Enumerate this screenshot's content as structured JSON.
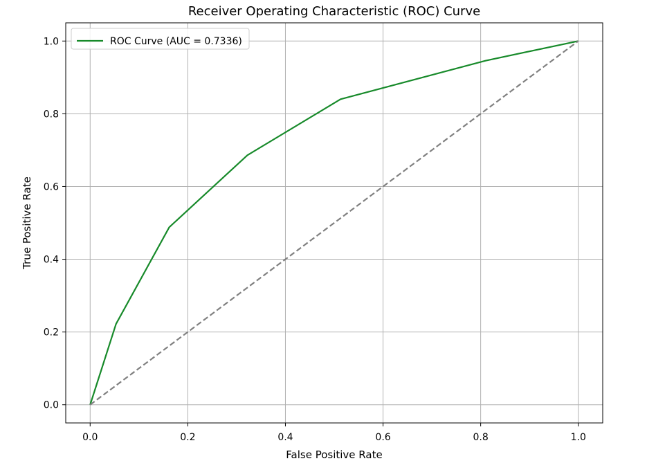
{
  "chart_data": {
    "type": "line",
    "title": "Receiver Operating Characteristic (ROC) Curve",
    "xlabel": "False Positive Rate",
    "ylabel": "True Positive Rate",
    "xlim": [
      -0.05,
      1.05
    ],
    "ylim": [
      -0.05,
      1.05
    ],
    "xticks": [
      "0.0",
      "0.2",
      "0.4",
      "0.6",
      "0.8",
      "1.0"
    ],
    "yticks": [
      "0.0",
      "0.2",
      "0.4",
      "0.6",
      "0.8",
      "1.0"
    ],
    "grid": true,
    "legend_position": "top-left",
    "series": [
      {
        "name": "ROC Curve (AUC = 0.7336)",
        "color": "#178a2a",
        "style": "solid",
        "x": [
          0.0,
          0.053,
          0.162,
          0.322,
          0.513,
          0.81,
          1.0
        ],
        "y": [
          0.0,
          0.222,
          0.488,
          0.686,
          0.84,
          0.946,
          1.0
        ]
      },
      {
        "name": "",
        "color": "#808080",
        "style": "dashed",
        "x": [
          0.0,
          1.0
        ],
        "y": [
          0.0,
          1.0
        ]
      }
    ]
  }
}
